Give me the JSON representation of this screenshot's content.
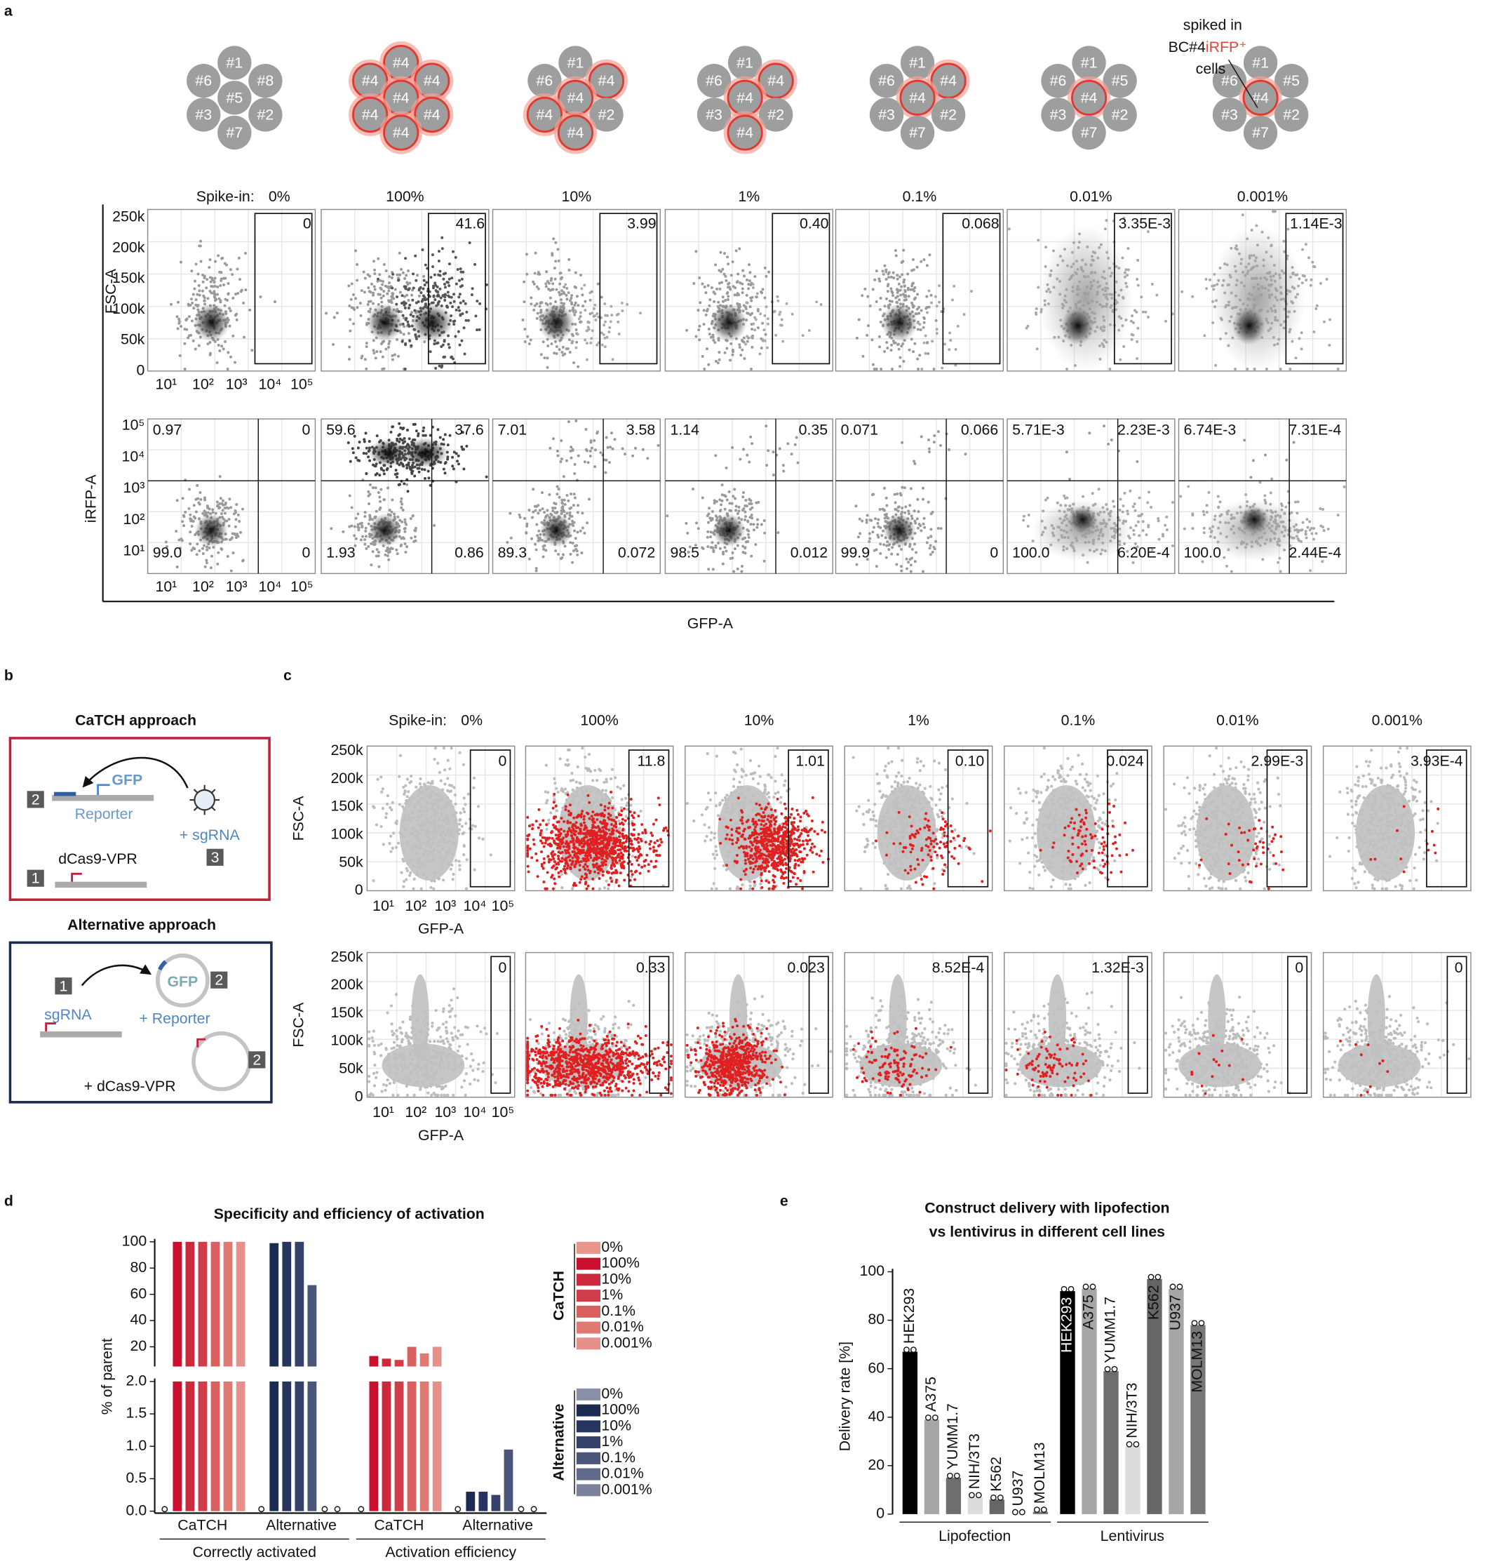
{
  "panel_a": {
    "letter": "a",
    "annotation": [
      "spiked in",
      "BC#4",
      "iRFP⁺",
      "cells"
    ],
    "plates": [
      {
        "wells": [
          "#1",
          "#8",
          "#6",
          "#5",
          "#3",
          "#2",
          "#7"
        ],
        "spiked": [
          false,
          false,
          false,
          false,
          false,
          false,
          false
        ]
      },
      {
        "wells": [
          "#4",
          "#4",
          "#4",
          "#4",
          "#4",
          "#4",
          "#4"
        ],
        "spiked": [
          true,
          true,
          true,
          true,
          true,
          true,
          true
        ]
      },
      {
        "wells": [
          "#1",
          "#4",
          "#6",
          "#4",
          "#4",
          "#2",
          "#4"
        ],
        "spiked": [
          false,
          true,
          false,
          true,
          true,
          false,
          true
        ]
      },
      {
        "wells": [
          "#1",
          "#4",
          "#6",
          "#4",
          "#3",
          "#2",
          "#4"
        ],
        "spiked": [
          false,
          true,
          false,
          true,
          false,
          false,
          true
        ]
      },
      {
        "wells": [
          "#1",
          "#4",
          "#6",
          "#4",
          "#3",
          "#2",
          "#7"
        ],
        "spiked": [
          false,
          true,
          false,
          true,
          false,
          false,
          false
        ]
      },
      {
        "wells": [
          "#1",
          "#5",
          "#6",
          "#4",
          "#3",
          "#2",
          "#7"
        ],
        "spiked": [
          false,
          false,
          false,
          true,
          false,
          false,
          false
        ]
      },
      {
        "wells": [
          "#1",
          "#5",
          "#6",
          "#4",
          "#3",
          "#2",
          "#7"
        ],
        "spiked": [
          false,
          false,
          false,
          true,
          false,
          false,
          false
        ]
      }
    ],
    "spike_label": "Spike-in:",
    "spikes": [
      "0%",
      "100%",
      "10%",
      "1%",
      "0.1%",
      "0.01%",
      "0.001%"
    ],
    "fsc": {
      "ylabel": "FSC-A",
      "yticks": [
        "250k",
        "200k",
        "150k",
        "100k",
        "50k",
        "0"
      ],
      "xticks": [
        "10¹",
        "10²",
        "10³",
        "10⁴",
        "10⁵"
      ],
      "gates": [
        "0",
        "41.6",
        "3.99",
        "0.40",
        "0.068",
        "3.35E-3",
        "1.14E-3"
      ]
    },
    "irfp": {
      "ylabel": "iRFP-A",
      "yticks": [
        "10⁵",
        "10⁴",
        "10³",
        "10²",
        "10¹"
      ],
      "xticks": [
        "10¹",
        "10²",
        "10³",
        "10⁴",
        "10⁵"
      ],
      "quadrants": [
        [
          "0.97",
          "0",
          "99.0",
          "0"
        ],
        [
          "59.6",
          "37.6",
          "1.93",
          "0.86"
        ],
        [
          "7.01",
          "3.58",
          "89.3",
          "0.072"
        ],
        [
          "1.14",
          "0.35",
          "98.5",
          "0.012"
        ],
        [
          "0.071",
          "0.066",
          "99.9",
          "0"
        ],
        [
          "5.71E-3",
          "2.23E-3",
          "100.0",
          "6.20E-4"
        ],
        [
          "6.74E-3",
          "7.31E-4",
          "100.0",
          "2.44E-4"
        ]
      ]
    },
    "xlabel": "GFP-A"
  },
  "panel_b": {
    "letter": "b",
    "catch": {
      "title": "CaTCH approach",
      "gfp": "GFP",
      "reporter": "Reporter",
      "sgrna": "+ sgRNA",
      "dcas": "dCas9-VPR",
      "steps": [
        "2",
        "3",
        "1"
      ]
    },
    "alternative": {
      "title": "Alternative approach",
      "sgrna": "sgRNA",
      "gfp": "GFP",
      "reporter": "+ Reporter",
      "dcas": "+ dCas9-VPR",
      "steps": [
        "1",
        "2",
        "2"
      ]
    }
  },
  "panel_c": {
    "letter": "c",
    "spike_label": "Spike-in:",
    "spikes": [
      "0%",
      "100%",
      "10%",
      "1%",
      "0.1%",
      "0.01%",
      "0.001%"
    ],
    "ylabel": "FSC-A",
    "xlabel": "GFP-A",
    "yticks": [
      "250k",
      "200k",
      "150k",
      "100k",
      "50k",
      "0"
    ],
    "xticks": [
      "10¹",
      "10²",
      "10³",
      "10⁴",
      "10⁵"
    ],
    "rows": [
      {
        "gates": [
          "0",
          "11.8",
          "1.01",
          "0.10",
          "0.024",
          "2.99E-3",
          "3.93E-4"
        ]
      },
      {
        "gates": [
          "0",
          "0.33",
          "0.023",
          "8.52E-4",
          "1.32E-3",
          "0",
          "0"
        ]
      }
    ]
  },
  "chart_data": [
    {
      "type": "bar",
      "panel": "d",
      "title": "Specificity and efficiency of activation",
      "ylabel": "% of parent",
      "categories": [
        "Correctly activated",
        "Activation efficiency"
      ],
      "ylim": [
        5,
        100
      ],
      "yticks": [
        20,
        40,
        60,
        80,
        100
      ],
      "ylim_lower": [
        0,
        2
      ],
      "yticks_lower": [
        {
          "value": 0,
          "label": "0.0"
        },
        {
          "value": 0.5,
          "label": "0.5"
        },
        {
          "value": 1,
          "label": "1.0"
        },
        {
          "value": 1.5,
          "label": "1.5"
        },
        {
          "value": 2,
          "label": "2.0"
        }
      ],
      "groups": [
        {
          "name": "CaTCH",
          "series": [
            {
              "name": "0%",
              "color": "#e8968a",
              "values": [
                0,
                0
              ]
            },
            {
              "name": "100%",
              "color": "#c8102e",
              "values": [
                100,
                13
              ]
            },
            {
              "name": "10%",
              "color": "#cc2a3c",
              "values": [
                100,
                11
              ]
            },
            {
              "name": "1%",
              "color": "#d03d4a",
              "values": [
                100,
                10
              ]
            },
            {
              "name": "0.1%",
              "color": "#d9605f",
              "values": [
                100,
                20
              ]
            },
            {
              "name": "0.01%",
              "color": "#df7a72",
              "values": [
                100,
                15
              ]
            },
            {
              "name": "0.001%",
              "color": "#e5908a",
              "values": [
                100,
                20
              ]
            }
          ]
        },
        {
          "name": "Alternative",
          "series": [
            {
              "name": "0%",
              "color": "#8a90a8",
              "values": [
                0,
                0
              ]
            },
            {
              "name": "100%",
              "color": "#1c2b52",
              "values": [
                99,
                0.3
              ]
            },
            {
              "name": "10%",
              "color": "#25355e",
              "values": [
                100,
                0.3
              ]
            },
            {
              "name": "1%",
              "color": "#34416a",
              "values": [
                100,
                0.25
              ]
            },
            {
              "name": "0.1%",
              "color": "#4a5579",
              "values": [
                67,
                0.95
              ]
            },
            {
              "name": "0.01%",
              "color": "#606a8a",
              "values": [
                0,
                0
              ]
            },
            {
              "name": "0.001%",
              "color": "#7a829c",
              "values": [
                0,
                0
              ]
            }
          ]
        }
      ]
    },
    {
      "type": "bar",
      "panel": "e",
      "title": [
        "Construct delivery with lipofection",
        "vs lentivirus in different cell lines"
      ],
      "ylabel": "Delivery rate [%]",
      "categories": [
        "HEK293",
        "A375",
        "YUMM1.7",
        "NIH/3T3",
        "K562",
        "U937",
        "MOLM13"
      ],
      "colors": [
        "#000000",
        "#a6a6a6",
        "#6e6e6e",
        "#dcdcdc",
        "#666666",
        "#a6a6a6",
        "#777777"
      ],
      "ylim": [
        0,
        100
      ],
      "yticks": [
        0,
        20,
        40,
        60,
        80,
        100
      ],
      "series": [
        {
          "name": "Lipofection",
          "values": [
            67,
            39,
            15,
            7,
            6,
            0,
            1
          ]
        },
        {
          "name": "Lentivirus",
          "values": [
            92,
            93,
            59,
            28,
            97,
            93,
            78
          ]
        }
      ]
    }
  ]
}
